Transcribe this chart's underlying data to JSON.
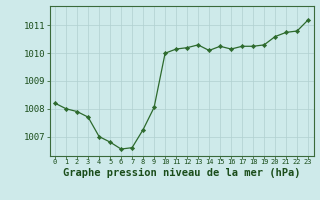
{
  "x": [
    0,
    1,
    2,
    3,
    4,
    5,
    6,
    7,
    8,
    9,
    10,
    11,
    12,
    13,
    14,
    15,
    16,
    17,
    18,
    19,
    20,
    21,
    22,
    23
  ],
  "y": [
    1008.2,
    1008.0,
    1007.9,
    1007.7,
    1007.0,
    1006.8,
    1006.55,
    1006.6,
    1007.25,
    1008.05,
    1010.0,
    1010.15,
    1010.2,
    1010.3,
    1010.1,
    1010.25,
    1010.15,
    1010.25,
    1010.25,
    1010.3,
    1010.6,
    1010.75,
    1010.8,
    1011.2
  ],
  "line_color": "#2d6a2d",
  "marker_color": "#2d6a2d",
  "bg_color": "#ceeaea",
  "grid_color": "#b0d0d0",
  "xlabel": "Graphe pression niveau de la mer (hPa)",
  "xlabel_color": "#1a4d1a",
  "xlabel_fontsize": 7.5,
  "tick_label_color": "#1a4d1a",
  "ytick_vals": [
    1007,
    1008,
    1009,
    1010,
    1011
  ],
  "ytick_labels": [
    "1007",
    "1008",
    "1009",
    "1010",
    "1011"
  ],
  "ylim": [
    1006.3,
    1011.7
  ],
  "xlim": [
    -0.5,
    23.5
  ],
  "xtick_labels": [
    "0",
    "1",
    "2",
    "3",
    "4",
    "5",
    "6",
    "7",
    "8",
    "9",
    "10",
    "11",
    "12",
    "13",
    "14",
    "15",
    "16",
    "17",
    "18",
    "19",
    "20",
    "21",
    "22",
    "23"
  ]
}
